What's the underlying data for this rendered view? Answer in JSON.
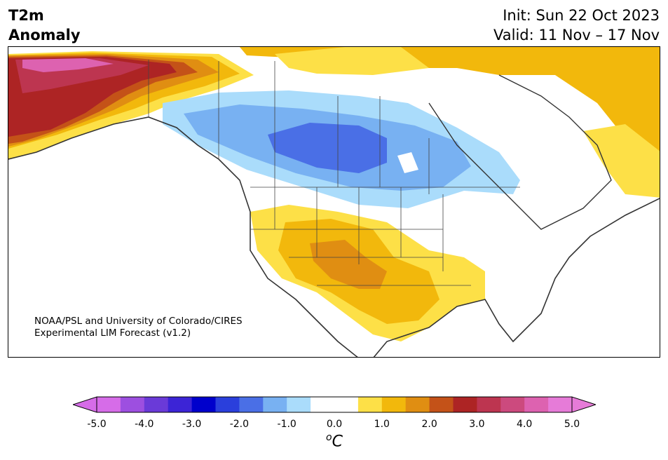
{
  "title": {
    "variable": "T2m",
    "kind": "Anomaly",
    "init": "Init: Sun 22 Oct 2023",
    "valid": "Valid: 11 Nov – 17 Nov"
  },
  "credit": {
    "line1": "NOAA/PSL and University of Colorado/CIRES",
    "line2": "Experimental LIM Forecast (v1.2)"
  },
  "colorbar": {
    "unit_sup": "o",
    "unit": "C",
    "ticks": [
      "-5.0",
      "-4.0",
      "-3.0",
      "-2.0",
      "-1.0",
      "0.0",
      "1.0",
      "2.0",
      "3.0",
      "4.0",
      "5.0"
    ],
    "colors": [
      "#d66ce8",
      "#9d4fe0",
      "#6a3ad8",
      "#3c24d6",
      "#0000cc",
      "#2a3fdc",
      "#4a6fe6",
      "#78b1f2",
      "#aadcfb",
      "#ffffff",
      "#ffffff",
      "#fde047",
      "#f2b80c",
      "#e08e12",
      "#c45218",
      "#ad2424",
      "#bd3550",
      "#cc4a7e",
      "#dd62b0",
      "#e67bd8"
    ],
    "under_color": "#d66ce8",
    "over_color": "#e67bd8"
  },
  "map": {
    "region": "North America",
    "anomaly_colors": {
      "strong_warm": "#c0272d",
      "warm_3": "#c45218",
      "warm_2": "#e08e12",
      "warm_1": "#f2b80c",
      "warm_0": "#fde047",
      "cool_1": "#aadcfb",
      "cool_2": "#78b1f2",
      "cool_3": "#4a6fe6",
      "extreme_warm": "#dd62b0"
    }
  }
}
